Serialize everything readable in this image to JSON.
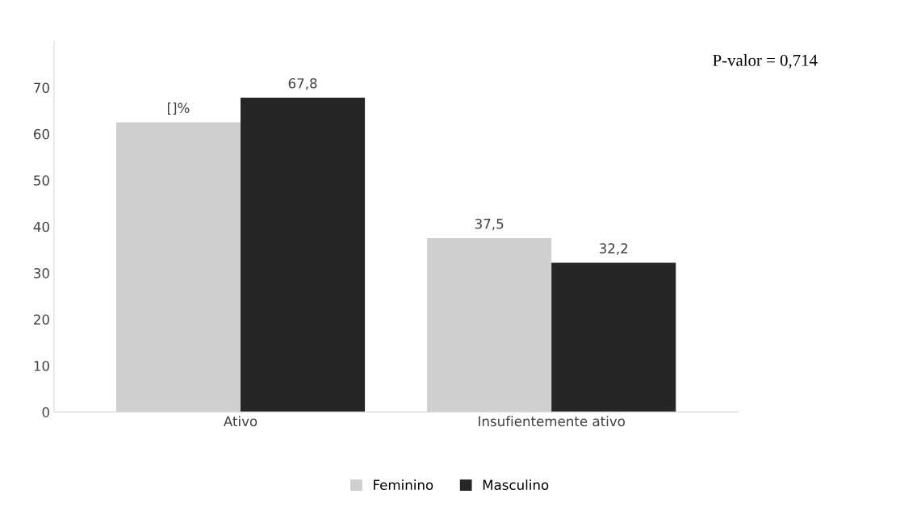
{
  "chart_data": {
    "type": "bar",
    "categories": [
      "Ativo",
      "Insufientemente ativo"
    ],
    "series": [
      {
        "name": "Feminino",
        "color": "#d0cfcf",
        "values": [
          62.5,
          37.5
        ],
        "value_labels": [
          "[]%",
          "37,5"
        ]
      },
      {
        "name": "Masculino",
        "color": "#262626",
        "values": [
          67.8,
          32.2
        ],
        "value_labels": [
          "67,8",
          "32,2"
        ]
      }
    ],
    "ylim": [
      0,
      80
    ],
    "yticks": [
      0,
      10,
      20,
      30,
      40,
      50,
      60,
      70
    ],
    "grid": false,
    "legend": "bottom",
    "annotations": [
      "P-valor = 0,714"
    ]
  }
}
